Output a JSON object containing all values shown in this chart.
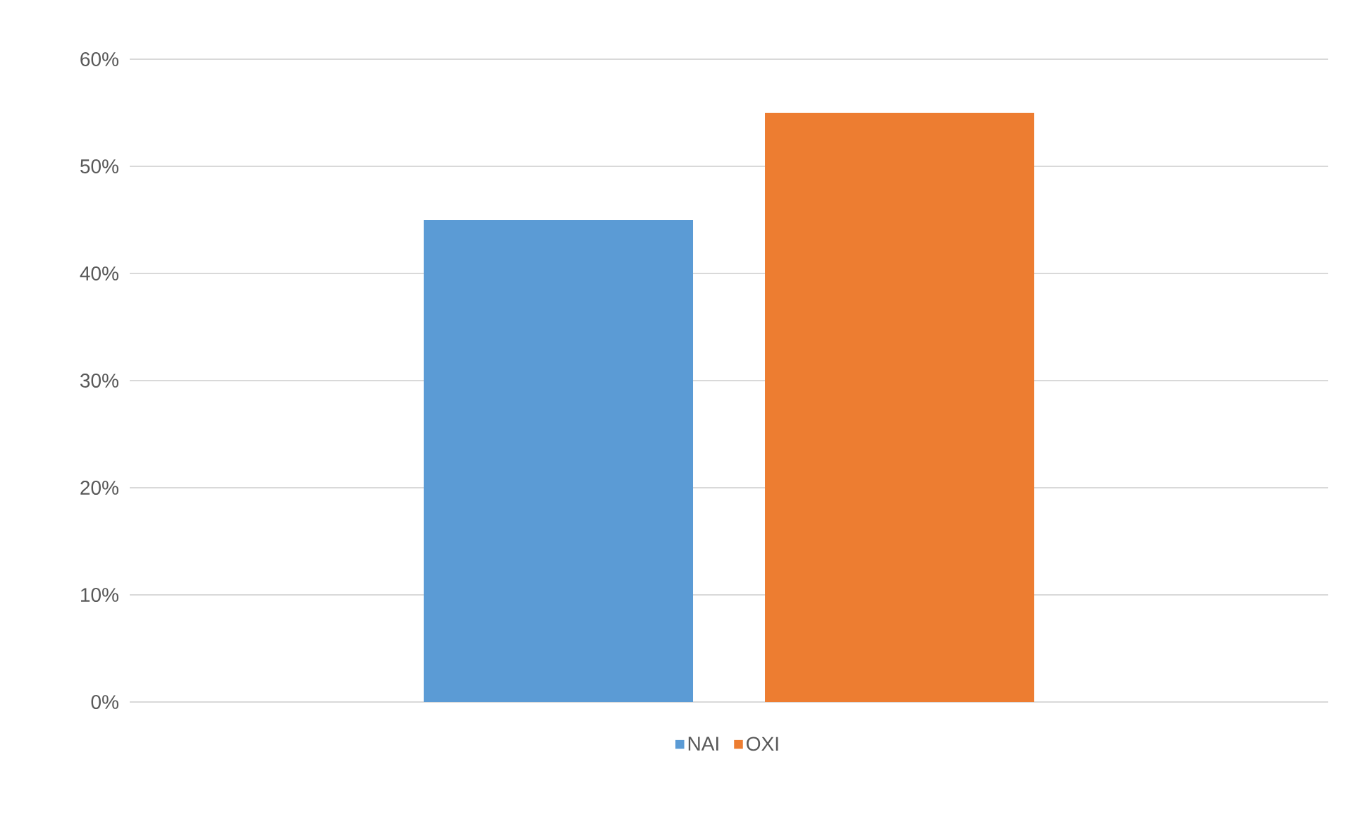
{
  "chart_data": {
    "type": "bar",
    "categories": [
      null
    ],
    "series": [
      {
        "name": "NAI",
        "color": "#5b9bd5",
        "values": [
          45
        ]
      },
      {
        "name": "OXI",
        "color": "#ed7d31",
        "values": [
          55
        ]
      }
    ],
    "ylim": [
      0,
      60
    ],
    "yticks": [
      {
        "value": 0,
        "label": "0%"
      },
      {
        "value": 10,
        "label": "10%"
      },
      {
        "value": 20,
        "label": "20%"
      },
      {
        "value": 30,
        "label": "30%"
      },
      {
        "value": 40,
        "label": "40%"
      },
      {
        "value": 50,
        "label": "50%"
      },
      {
        "value": 60,
        "label": "60%"
      }
    ],
    "grid": "y",
    "legend": "bottom"
  }
}
